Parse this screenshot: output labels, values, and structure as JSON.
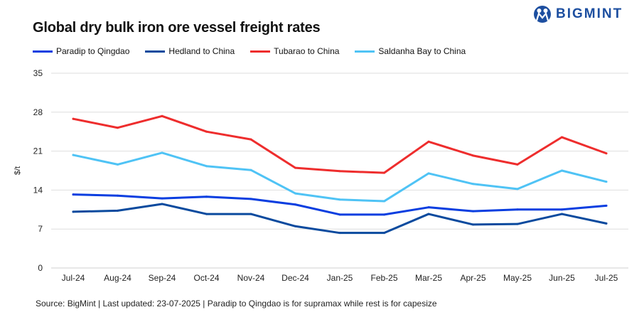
{
  "header": {
    "title": "Global dry bulk iron ore vessel freight rates",
    "logo_text": "BIGMINT"
  },
  "source": "Source: BigMint | Last updated: 23-07-2025 | Paradip to Qingdao is for supramax while rest is for capesize",
  "chart_data": {
    "type": "line",
    "title": "Global dry bulk iron ore vessel freight rates",
    "xlabel": "",
    "ylabel": "$/t",
    "ylim": [
      0,
      35
    ],
    "yticks": [
      0,
      7,
      14,
      21,
      28,
      35
    ],
    "grid": true,
    "legend_position": "top-left",
    "categories": [
      "Jul-24",
      "Aug-24",
      "Sep-24",
      "Oct-24",
      "Nov-24",
      "Dec-24",
      "Jan-25",
      "Feb-25",
      "Mar-25",
      "Apr-25",
      "May-25",
      "Jun-25",
      "Jul-25"
    ],
    "series": [
      {
        "name": "Paradip to Qingdao",
        "color": "#0a3ee0",
        "values": [
          13.2,
          13.0,
          12.5,
          12.8,
          12.4,
          11.4,
          9.6,
          9.6,
          10.9,
          10.2,
          10.5,
          10.5,
          11.2
        ]
      },
      {
        "name": "Hedland to China",
        "color": "#0a4a9e",
        "values": [
          10.1,
          10.3,
          11.5,
          9.7,
          9.7,
          7.5,
          6.3,
          6.3,
          9.7,
          7.8,
          7.9,
          9.7,
          8.0
        ]
      },
      {
        "name": "Tubarao to China",
        "color": "#ee2d2d",
        "values": [
          26.8,
          25.2,
          27.3,
          24.5,
          23.1,
          18.0,
          17.4,
          17.1,
          22.7,
          20.2,
          18.6,
          23.5,
          20.6
        ]
      },
      {
        "name": "Saldanha Bay to China",
        "color": "#4fc3f5",
        "values": [
          20.3,
          18.6,
          20.7,
          18.3,
          17.6,
          13.4,
          12.3,
          12.0,
          17.0,
          15.1,
          14.2,
          17.5,
          15.5
        ]
      }
    ]
  }
}
